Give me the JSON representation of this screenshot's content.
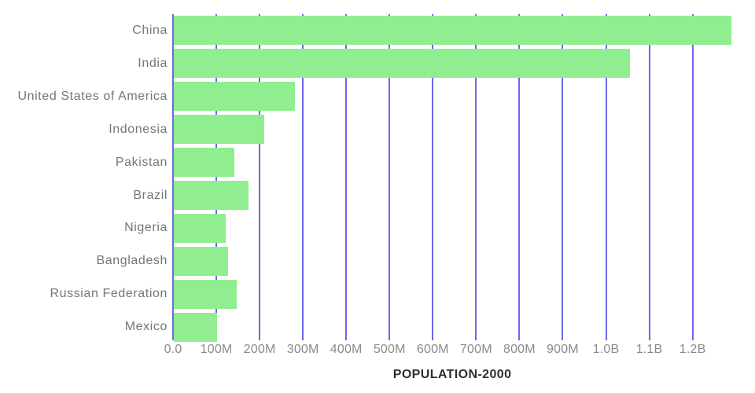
{
  "chart_data": {
    "type": "bar",
    "orientation": "horizontal",
    "title": "POPULATION-2000",
    "legend": "none",
    "grid": "vertical",
    "categories": [
      "China",
      "India",
      "United States of America",
      "Indonesia",
      "Pakistan",
      "Brazil",
      "Nigeria",
      "Bangladesh",
      "Russian Federation",
      "Mexico"
    ],
    "values": [
      1290000000,
      1055000000,
      281000000,
      211000000,
      142000000,
      175000000,
      122000000,
      127000000,
      147000000,
      101000000
    ],
    "value_unit": "population",
    "x_axis": {
      "min": 0,
      "max": 1290000000,
      "ticks": [
        {
          "value": 0,
          "label": "0.0"
        },
        {
          "value": 100000000,
          "label": "100M"
        },
        {
          "value": 200000000,
          "label": "200M"
        },
        {
          "value": 300000000,
          "label": "300M"
        },
        {
          "value": 400000000,
          "label": "400M"
        },
        {
          "value": 500000000,
          "label": "500M"
        },
        {
          "value": 600000000,
          "label": "600M"
        },
        {
          "value": 700000000,
          "label": "700M"
        },
        {
          "value": 800000000,
          "label": "800M"
        },
        {
          "value": 900000000,
          "label": "900M"
        },
        {
          "value": 1000000000,
          "label": "1.0B"
        },
        {
          "value": 1100000000,
          "label": "1.1B"
        },
        {
          "value": 1200000000,
          "label": "1.2B"
        }
      ]
    },
    "colors": {
      "bar": "#90EE90",
      "gridline": "#6B68E8",
      "category_label": "#757575",
      "axis_label": "#8A8A8A",
      "title": "#2E2E2E",
      "background": "#FFFFFF"
    }
  }
}
